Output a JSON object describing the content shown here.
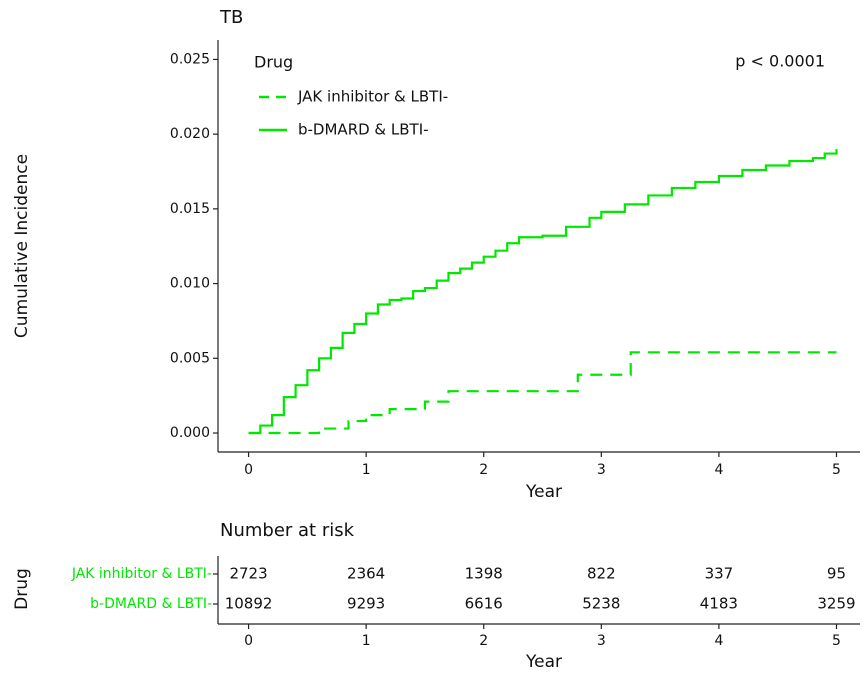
{
  "chart_data": [
    {
      "type": "line",
      "step": true,
      "title": "TB",
      "xlabel": "Year",
      "ylabel": "Cumulative Incidence",
      "legend_title": "Drug",
      "legend": "top-left",
      "annotation": "p < 0.0001",
      "xlim": [
        -0.26,
        5.2
      ],
      "xticks": [
        0,
        1,
        2,
        3,
        4,
        5
      ],
      "ylim": [
        -0.00127,
        0.0263
      ],
      "yticks": [
        {
          "value": 0,
          "label": "0.000"
        },
        0.005,
        {
          "value": 0.01,
          "label": "0.010"
        },
        0.015,
        {
          "value": 0.02,
          "label": "0.020"
        },
        0.025
      ],
      "series": [
        {
          "name": "JAK inhibitor & LBTI-",
          "color": "#00e800",
          "dash": true,
          "x": [
            0,
            0.6,
            0.85,
            1.0,
            1.2,
            1.5,
            1.7,
            2.8,
            3.25,
            5.0
          ],
          "values": [
            0,
            0.0003,
            0.0008,
            0.0012,
            0.0016,
            0.0021,
            0.0028,
            0.0039,
            0.0054,
            0.0054
          ]
        },
        {
          "name": "b-DMARD & LBTI-",
          "color": "#00e800",
          "dash": false,
          "x": [
            0,
            0.1,
            0.2,
            0.3,
            0.4,
            0.5,
            0.6,
            0.7,
            0.8,
            0.9,
            1.0,
            1.1,
            1.2,
            1.3,
            1.4,
            1.5,
            1.6,
            1.7,
            1.8,
            1.9,
            2.0,
            2.1,
            2.2,
            2.3,
            2.5,
            2.7,
            2.9,
            3.0,
            3.2,
            3.4,
            3.6,
            3.8,
            4.0,
            4.2,
            4.4,
            4.6,
            4.8,
            4.9,
            5.0
          ],
          "values": [
            0,
            0.0005,
            0.0012,
            0.0024,
            0.0032,
            0.0042,
            0.005,
            0.0057,
            0.0067,
            0.0073,
            0.008,
            0.0086,
            0.0089,
            0.009,
            0.0095,
            0.0097,
            0.0102,
            0.0107,
            0.011,
            0.0114,
            0.0118,
            0.0122,
            0.0127,
            0.0131,
            0.0132,
            0.0138,
            0.0144,
            0.0148,
            0.0153,
            0.0159,
            0.0164,
            0.0168,
            0.0172,
            0.0176,
            0.0179,
            0.0182,
            0.0184,
            0.0187,
            0.019
          ]
        }
      ]
    },
    {
      "type": "risk-table",
      "title": "Number at risk",
      "xlabel": "Year",
      "ylabel": "Drug",
      "xlim": [
        -0.26,
        5.2
      ],
      "xticks": [
        0,
        1,
        2,
        3,
        4,
        5
      ],
      "rows": [
        {
          "name": "JAK inhibitor & LBTI-",
          "color": "#00e800",
          "values": [
            2723,
            2364,
            1398,
            822,
            337,
            95
          ]
        },
        {
          "name": "b-DMARD & LBTI-",
          "color": "#00e800",
          "values": [
            10892,
            9293,
            6616,
            5238,
            4183,
            3259
          ]
        }
      ]
    }
  ]
}
